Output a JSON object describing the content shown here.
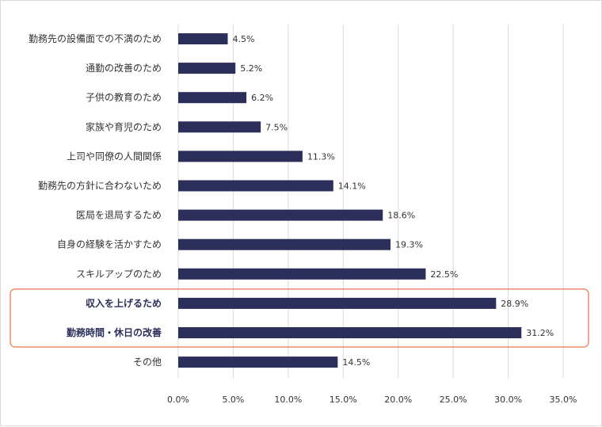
{
  "chart_data": {
    "type": "bar",
    "orientation": "horizontal",
    "categories": [
      "勤務先の設備面での不満のため",
      "通勤の改善のため",
      "子供の教育のため",
      "家族や育児のため",
      "上司や同僚の人間関係",
      "勤務先の方針に合わないため",
      "医局を退局するため",
      "自身の経験を活かすため",
      "スキルアップのため",
      "収入を上げるため",
      "勤務時間・休日の改善",
      "その他"
    ],
    "values": [
      4.5,
      5.2,
      6.2,
      7.5,
      11.3,
      14.1,
      18.6,
      19.3,
      22.5,
      28.9,
      31.2,
      14.5
    ],
    "value_labels": [
      "4.5%",
      "5.2%",
      "6.2%",
      "7.5%",
      "11.3%",
      "14.1%",
      "18.6%",
      "19.3%",
      "22.5%",
      "28.9%",
      "31.2%",
      "14.5%"
    ],
    "highlighted": [
      "収入を上げるため",
      "勤務時間・休日の改善"
    ],
    "xlim": [
      0,
      35
    ],
    "x_ticks": [
      0,
      5,
      10,
      15,
      20,
      25,
      30,
      35
    ],
    "x_tick_labels": [
      "0.0%",
      "5.0%",
      "10.0%",
      "15.0%",
      "20.0%",
      "25.0%",
      "30.0%",
      "35.0%"
    ],
    "grid": "vertical",
    "legend": "none",
    "colors": {
      "bar": "#2b2f59",
      "highlight_border": "#e8734a",
      "grid": "#d9d9d9"
    }
  }
}
